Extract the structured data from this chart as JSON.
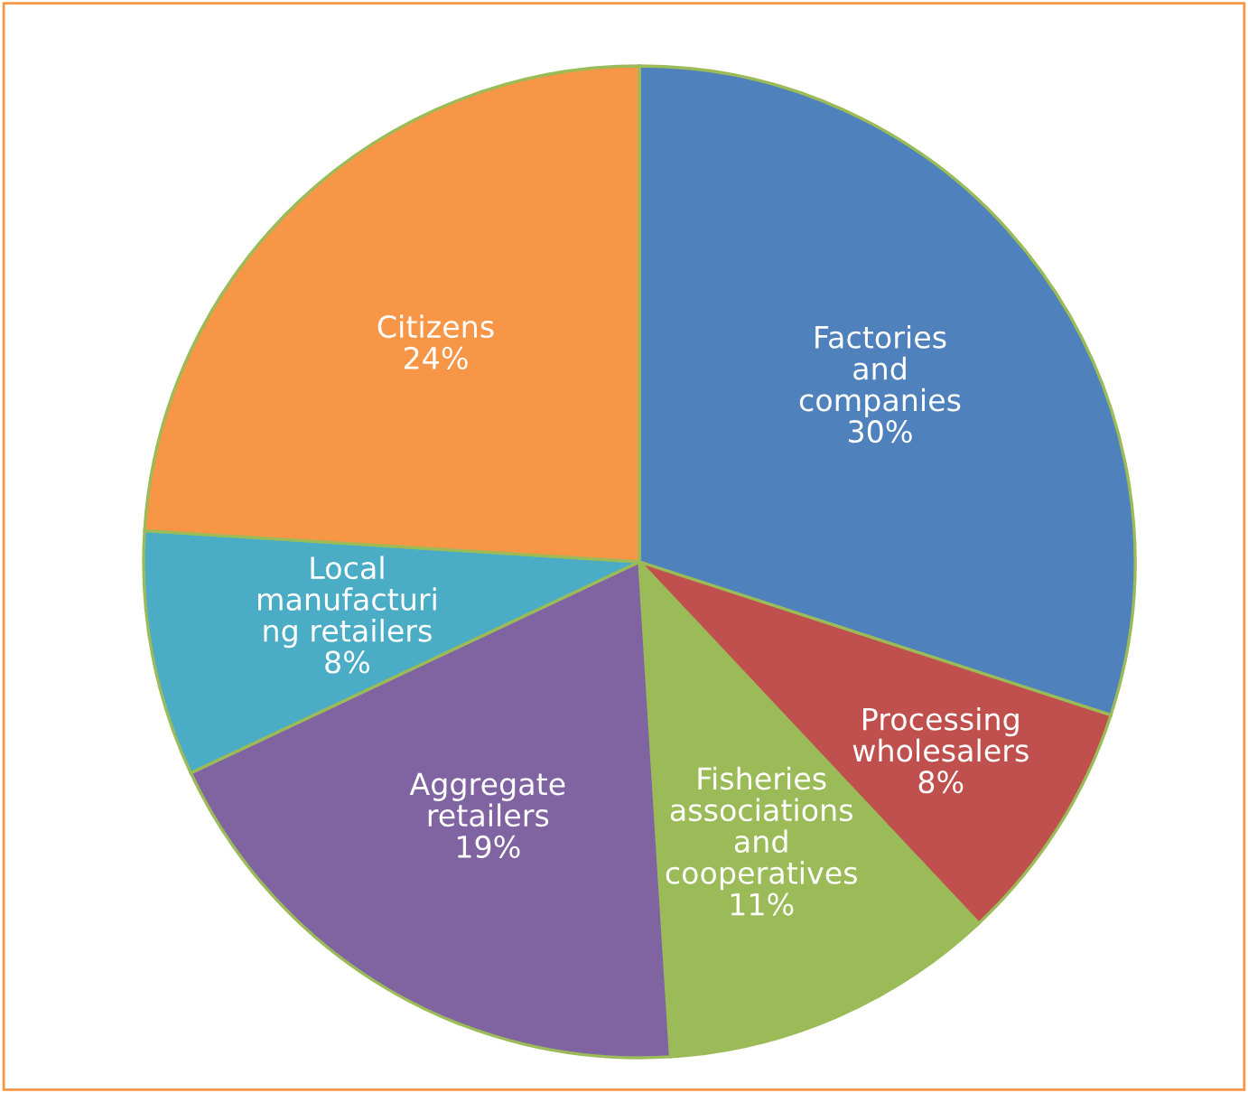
{
  "chart_data": {
    "type": "pie",
    "categories": [
      "Factories\nand\ncompanies",
      "Processing\nwholesalers",
      "Fisheries\nassociations\nand\ncooperatives",
      "Aggregate\nretailers",
      "Local\nmanufacturi\nng retailers",
      "Citizens"
    ],
    "values": [
      30,
      8,
      11,
      19,
      8,
      24
    ],
    "value_labels": [
      "30%",
      "8%",
      "11%",
      "19%",
      "8%",
      "24%"
    ],
    "colors": [
      "#4f81bd",
      "#c0504d",
      "#9bbb59",
      "#8064a2",
      "#4bacc6",
      "#f79646"
    ]
  }
}
